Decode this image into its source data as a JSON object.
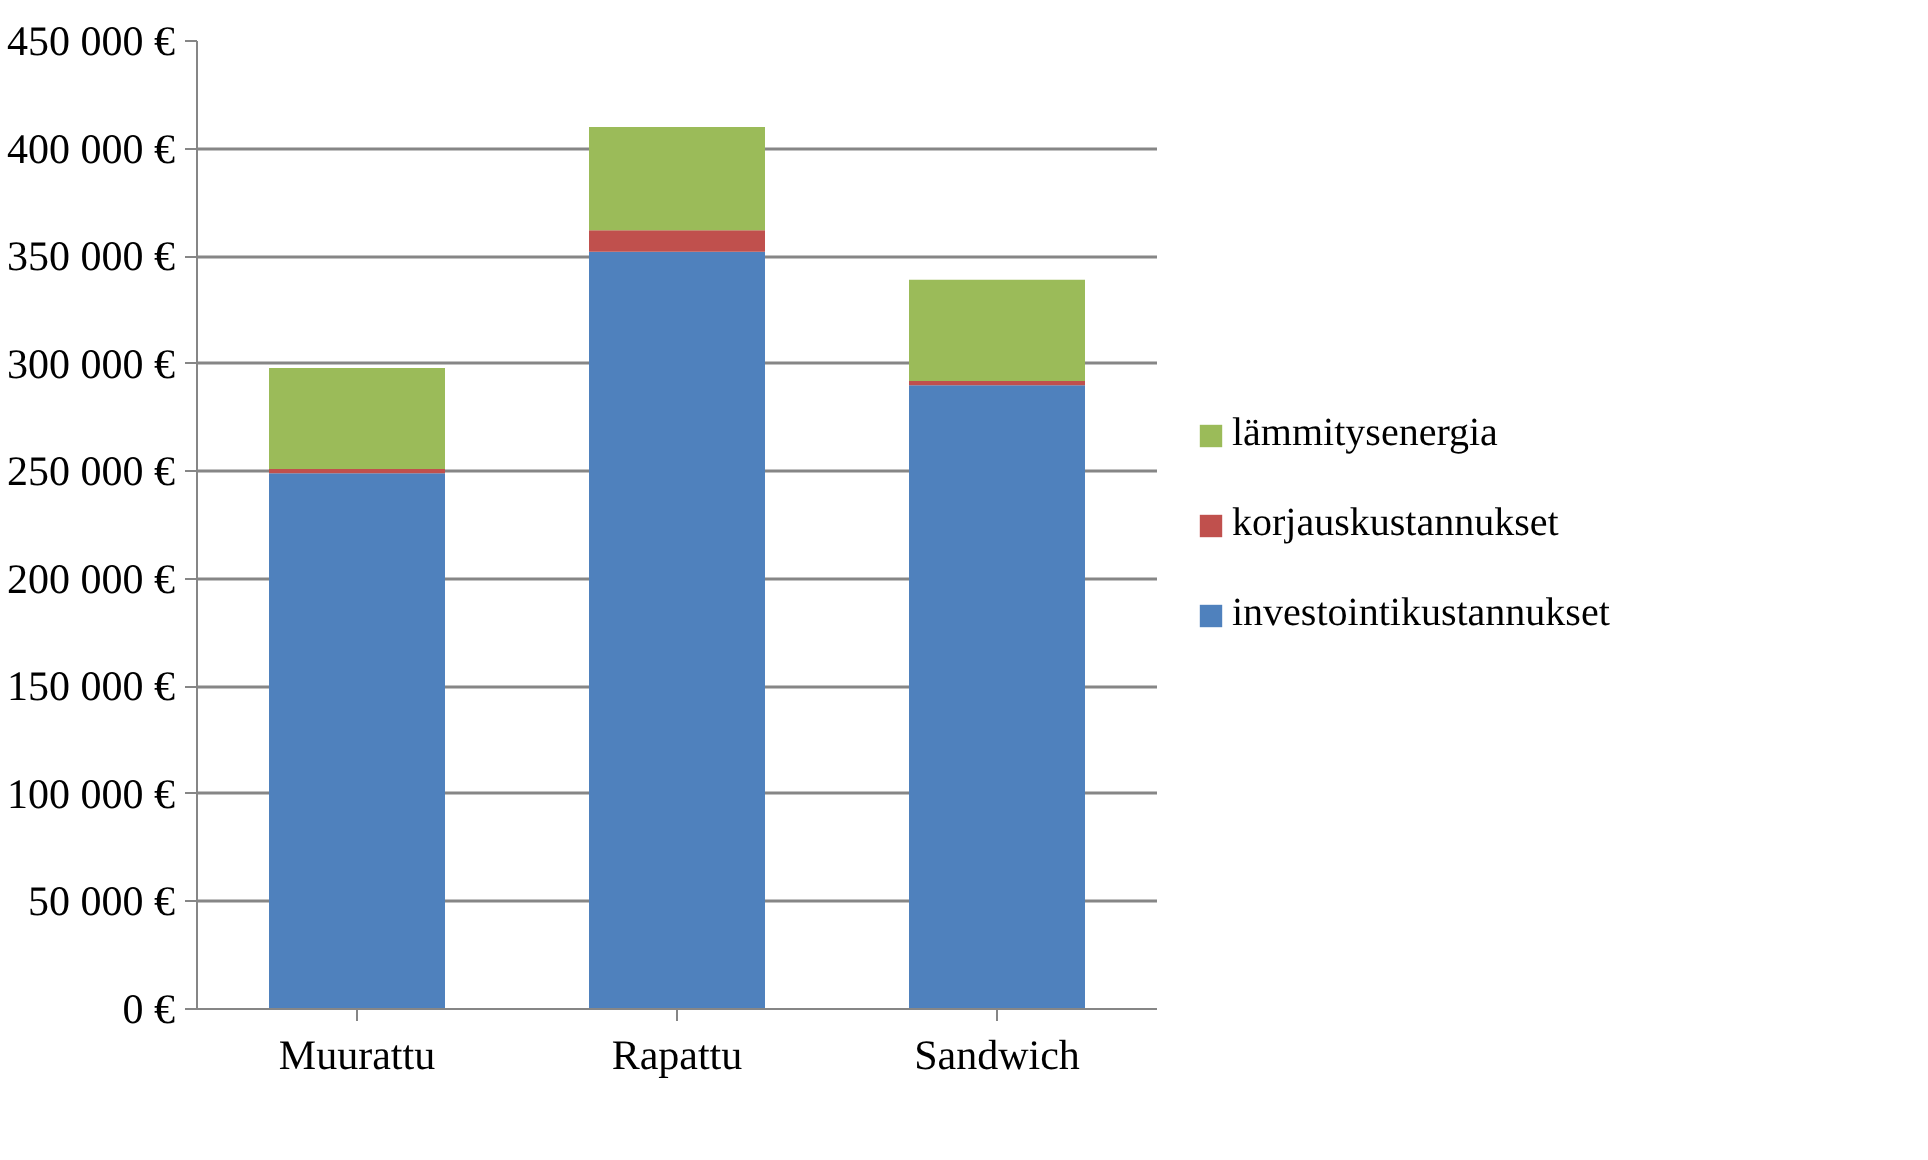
{
  "chart_data": {
    "type": "bar",
    "stacked": true,
    "categories": [
      "Muurattu",
      "Rapattu",
      "Sandwich"
    ],
    "series": [
      {
        "name": "investointikustannukset",
        "color": "#4f81bd",
        "values": [
          249000,
          352000,
          290000
        ]
      },
      {
        "name": "korjauskustannukset",
        "color": "#c0504d",
        "values": [
          2000,
          10000,
          2000
        ]
      },
      {
        "name": "lämmitysenergia",
        "color": "#9bbb59",
        "values": [
          47000,
          48000,
          47000
        ]
      }
    ],
    "ylim": [
      0,
      450000
    ],
    "yticks": [
      {
        "value": 0,
        "label": "0 €"
      },
      {
        "value": 50000,
        "label": "50 000 €"
      },
      {
        "value": 100000,
        "label": "100 000 €"
      },
      {
        "value": 150000,
        "label": "150 000 €"
      },
      {
        "value": 200000,
        "label": "200 000 €"
      },
      {
        "value": 250000,
        "label": "250 000 €"
      },
      {
        "value": 300000,
        "label": "300 000 €"
      },
      {
        "value": 350000,
        "label": "350 000 €"
      },
      {
        "value": 400000,
        "label": "400 000 €"
      },
      {
        "value": 450000,
        "label": "450 000 €"
      }
    ],
    "grid": "y",
    "legend": "right"
  }
}
